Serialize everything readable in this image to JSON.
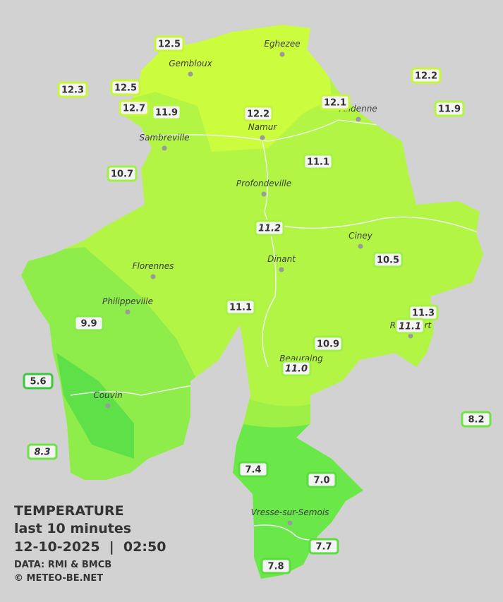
{
  "legend": {
    "title": "TEMPERATURE",
    "subtitle": "last 10 minutes",
    "datetime": "12-10-2025  |  02:50",
    "source": "DATA: RMI & BMCB",
    "credit": "© METEO-BE.NET"
  },
  "towns": [
    "Eghezee",
    "Gembloux",
    "Namur",
    "Andenne",
    "Sambreville",
    "Profondeville",
    "Ciney",
    "Dinant",
    "Florennes",
    "Philippeville",
    "Couvin",
    "Beauraing",
    "Rochefort",
    "Vresse-sur-Semois"
  ],
  "stations": [
    {
      "label": "12.5",
      "color": "#c8f53a"
    },
    {
      "label": "12.3",
      "color": "#c8f53a"
    },
    {
      "label": "12.5",
      "color": "#c8f53a"
    },
    {
      "label": "12.7",
      "color": "#c8f53a"
    },
    {
      "label": "11.9",
      "color": "#b4f540"
    },
    {
      "label": "12.2",
      "color": "#c8f53a"
    },
    {
      "label": "12.1",
      "color": "#c8f53a"
    },
    {
      "label": "12.2",
      "color": "#c8f53a"
    },
    {
      "label": "11.9",
      "color": "#b4f540"
    },
    {
      "label": "10.7",
      "color": "#9ef046"
    },
    {
      "label": "11.1",
      "color": "#a8f244"
    },
    {
      "label": "11.2",
      "color": "#a8f244"
    },
    {
      "label": "10.5",
      "color": "#9ef046"
    },
    {
      "label": "11.1",
      "color": "#a8f244"
    },
    {
      "label": "9.9",
      "color": "#88ea48"
    },
    {
      "label": "11.3",
      "color": "#a8f244"
    },
    {
      "label": "11.1",
      "color": "#a8f244"
    },
    {
      "label": "10.9",
      "color": "#9ef046"
    },
    {
      "label": "11.0",
      "color": "#9ef046"
    },
    {
      "label": "5.6",
      "color": "#3cc83c"
    },
    {
      "label": "8.2",
      "color": "#6ee444"
    },
    {
      "label": "8.3",
      "color": "#6ee444"
    },
    {
      "label": "7.4",
      "color": "#5cdc40"
    },
    {
      "label": "7.0",
      "color": "#5cdc40"
    },
    {
      "label": "7.7",
      "color": "#5cdc40"
    },
    {
      "label": "7.8",
      "color": "#5cdc40"
    }
  ]
}
